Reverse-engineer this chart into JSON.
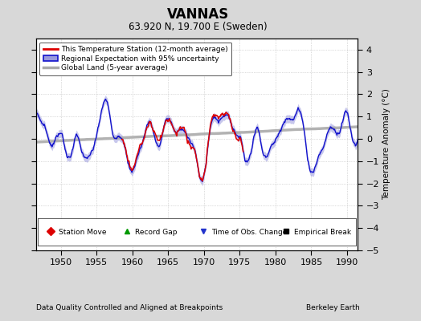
{
  "title": "VANNAS",
  "subtitle": "63.920 N, 19.700 E (Sweden)",
  "xlabel_bottom": "Data Quality Controlled and Aligned at Breakpoints",
  "xlabel_right": "Berkeley Earth",
  "ylabel": "Temperature Anomaly (°C)",
  "xlim": [
    1946.5,
    1991.5
  ],
  "ylim": [
    -5,
    4.5
  ],
  "yticks": [
    -5,
    -4,
    -3,
    -2,
    -1,
    0,
    1,
    2,
    3,
    4
  ],
  "xticks": [
    1950,
    1955,
    1960,
    1965,
    1970,
    1975,
    1980,
    1985,
    1990
  ],
  "background_color": "#d8d8d8",
  "plot_bg_color": "#ffffff",
  "grid_color": "#bbbbbb",
  "empirical_break_x": 1970.5,
  "empirical_break_y": -4.05,
  "legend_entries": [
    "This Temperature Station (12-month average)",
    "Regional Expectation with 95% uncertainty",
    "Global Land (5-year average)"
  ],
  "station_color": "#dd0000",
  "regional_color": "#1111cc",
  "regional_fill_color": "#9999dd",
  "global_color": "#aaaaaa",
  "seed": 123,
  "station_start_year": 1958.5,
  "station_end_year": 1975.5
}
